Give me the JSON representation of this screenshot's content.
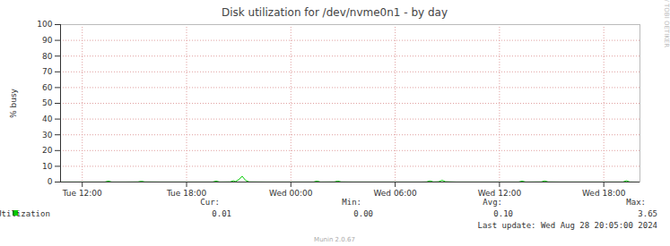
{
  "chart_data": {
    "type": "line",
    "title": "Disk utilization for /dev/nvme0n1 - by day",
    "y_label": "% busy",
    "x": [
      10.75,
      11.5,
      12.5,
      13.3,
      13.5,
      13.7,
      14.5,
      15.2,
      15.4,
      15.6,
      16.5,
      17.5,
      18.5,
      19.5,
      19.7,
      19.9,
      20.5,
      20.7,
      20.8,
      21.0,
      21.2,
      21.4,
      21.6,
      22.5,
      23.5,
      24.5,
      25.3,
      25.5,
      25.7,
      26.5,
      26.7,
      26.9,
      27.5,
      28.5,
      29.5,
      30.5,
      31.5,
      31.8,
      32.0,
      32.2,
      32.5,
      32.7,
      32.9,
      33.5,
      34.5,
      35.5,
      36.5,
      37.1,
      37.3,
      37.5,
      38.4,
      38.6,
      38.8,
      39.5,
      40.5,
      41.5,
      42.5,
      43.1,
      43.3,
      43.5,
      44.0
    ],
    "series": [
      {
        "name": "Utilization",
        "color": "#00cc00",
        "values": [
          0.05,
          0.05,
          0.05,
          0.05,
          0.6,
          0.05,
          0.05,
          0.1,
          0.5,
          0.1,
          0.05,
          0.05,
          0.05,
          0.05,
          0.6,
          0.05,
          0.1,
          0.8,
          0.3,
          1.5,
          3.65,
          1.0,
          0.1,
          0.05,
          0.05,
          0.05,
          0.05,
          0.6,
          0.05,
          0.1,
          0.6,
          0.1,
          0.05,
          0.05,
          0.05,
          0.05,
          0.05,
          0.1,
          0.7,
          0.1,
          0.2,
          1.1,
          0.2,
          0.05,
          0.05,
          0.05,
          0.05,
          0.05,
          0.6,
          0.05,
          0.1,
          0.7,
          0.1,
          0.05,
          0.05,
          0.05,
          0.05,
          0.05,
          0.8,
          0.05,
          0.01
        ]
      }
    ],
    "xlim": [
      10.75,
      44.08
    ],
    "xticks": [
      {
        "value": 12,
        "label": "Tue 12:00"
      },
      {
        "value": 18,
        "label": "Tue 18:00"
      },
      {
        "value": 24,
        "label": "Wed 00:00"
      },
      {
        "value": 30,
        "label": "Wed 06:00"
      },
      {
        "value": 36,
        "label": "Wed 12:00"
      },
      {
        "value": 42,
        "label": "Wed 18:00"
      }
    ],
    "ylim": [
      0,
      100
    ],
    "yticks": [
      0,
      10,
      20,
      30,
      40,
      50,
      60,
      70,
      80,
      90,
      100
    ],
    "grid": true,
    "stats": {
      "labels": [
        "Cur:",
        "Min:",
        "Avg:",
        "Max:"
      ],
      "values": [
        0.01,
        0.0,
        0.1,
        3.65
      ],
      "value_labels": [
        "0.01",
        "0.00",
        "0.10",
        "3.65"
      ]
    },
    "last_update": "Last update: Wed Aug 28 20:05:00 2024",
    "footer": "Munin 2.0.67",
    "side_text": "RRDTOOL / TOBI OETIKER"
  }
}
